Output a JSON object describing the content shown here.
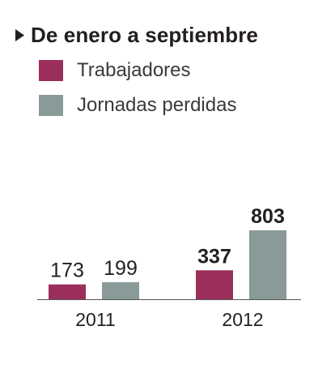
{
  "colors": {
    "text": "#231f20",
    "axis": "#555555"
  },
  "header": {
    "title": "De enero a septiembre",
    "marker_icon": "triangle-right-icon"
  },
  "chart_data": {
    "type": "bar",
    "title": "De enero a septiembre",
    "categories": [
      "2011",
      "2012"
    ],
    "series": [
      {
        "name": "Trabajadores",
        "color": "#9b2f5c",
        "values": [
          173,
          337
        ],
        "labels": [
          "173",
          "337"
        ],
        "bold": [
          false,
          true
        ]
      },
      {
        "name": "Jornadas perdidas",
        "color": "#8a9a98",
        "values": [
          199,
          803
        ],
        "labels": [
          "199",
          "803"
        ],
        "bold": [
          false,
          true
        ]
      }
    ],
    "xlabel": "",
    "ylabel": "",
    "ylim": [
      0,
      803
    ],
    "grid": false,
    "legend_position": "top-left"
  }
}
